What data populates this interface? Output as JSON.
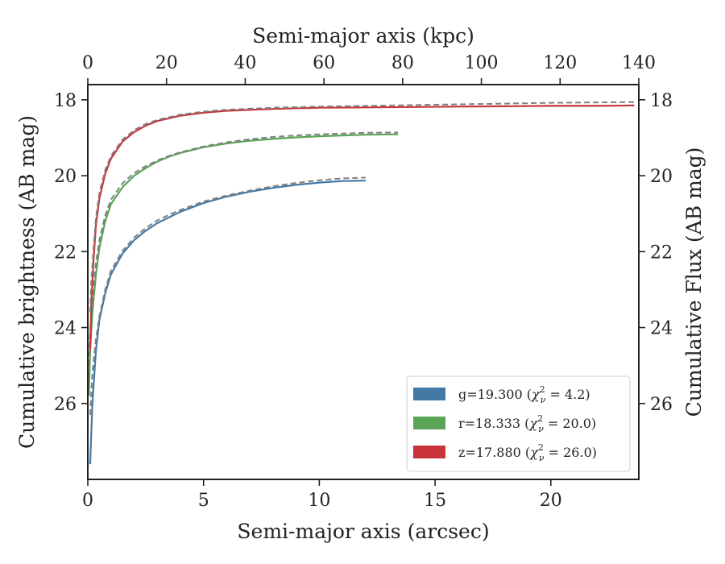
{
  "chart_data": {
    "type": "line",
    "xlabel": "Semi-major axis (arcsec)",
    "xlabel_top": "Semi-major axis (kpc)",
    "ylabel": "Cumulative brightness (AB mag)",
    "ylabel_right": "Cumulative Flux (AB mag)",
    "xlim": [
      0,
      23.8
    ],
    "xlim_top": [
      0,
      140
    ],
    "ylim": [
      28.0,
      17.6
    ],
    "y_inverted": true,
    "grid": false,
    "legend_position": "lower-right",
    "x_ticks": [
      0,
      5,
      10,
      15,
      20
    ],
    "x_ticks_top": [
      0,
      20,
      40,
      60,
      80,
      100,
      120,
      140
    ],
    "y_ticks": [
      18,
      20,
      22,
      24,
      26
    ],
    "series": [
      {
        "band": "g",
        "legend_mag": "g=19.300",
        "legend_chi": "4.2",
        "color": "#4479a6",
        "x": [
          0.1,
          0.2,
          0.35,
          0.5,
          0.75,
          1.0,
          1.5,
          2.0,
          2.5,
          3.0,
          3.5,
          4.0,
          5.0,
          6.0,
          7.0,
          8.0,
          9.0,
          10.0,
          11.0,
          12.0
        ],
        "y": [
          27.6,
          26.0,
          24.6,
          23.8,
          23.1,
          22.6,
          22.05,
          21.7,
          21.45,
          21.25,
          21.1,
          20.95,
          20.72,
          20.55,
          20.42,
          20.32,
          20.24,
          20.18,
          20.14,
          20.13
        ],
        "model_x": [
          0.1,
          0.2,
          0.35,
          0.5,
          0.75,
          1.0,
          1.5,
          2.0,
          2.5,
          3.0,
          3.5,
          4.0,
          5.0,
          6.0,
          7.0,
          8.0,
          9.0,
          10.0,
          11.0,
          12.0
        ],
        "model_y": [
          26.3,
          25.2,
          24.3,
          23.7,
          23.0,
          22.5,
          21.98,
          21.63,
          21.38,
          21.18,
          21.03,
          20.9,
          20.68,
          20.52,
          20.39,
          20.28,
          20.19,
          20.12,
          20.07,
          20.05
        ]
      },
      {
        "band": "r",
        "legend_mag": "r=18.333",
        "legend_chi": "20.0",
        "color": "#5aa455",
        "x": [
          0.05,
          0.1,
          0.2,
          0.35,
          0.5,
          0.75,
          1.0,
          1.5,
          2.0,
          2.5,
          3.0,
          3.5,
          4.0,
          5.0,
          6.0,
          7.0,
          8.0,
          9.0,
          10.0,
          11.0,
          12.0,
          13.4
        ],
        "y": [
          25.8,
          24.6,
          23.6,
          22.6,
          21.9,
          21.2,
          20.75,
          20.3,
          20.0,
          19.8,
          19.63,
          19.5,
          19.4,
          19.25,
          19.15,
          19.08,
          19.03,
          18.99,
          18.96,
          18.94,
          18.92,
          18.91
        ],
        "model_x": [
          0.05,
          0.1,
          0.2,
          0.35,
          0.5,
          0.75,
          1.0,
          1.5,
          2.0,
          2.5,
          3.0,
          3.5,
          4.0,
          5.0,
          6.0,
          7.0,
          8.0,
          9.0,
          10.0,
          11.0,
          12.0,
          13.4
        ],
        "model_y": [
          25.0,
          24.1,
          23.2,
          22.3,
          21.7,
          21.05,
          20.63,
          20.2,
          19.93,
          19.75,
          19.6,
          19.48,
          19.38,
          19.23,
          19.12,
          19.04,
          18.98,
          18.94,
          18.91,
          18.89,
          18.87,
          18.86
        ]
      },
      {
        "band": "z",
        "legend_mag": "z=17.880",
        "legend_chi": "26.0",
        "color": "#c9343a",
        "x": [
          0.1,
          0.15,
          0.25,
          0.35,
          0.5,
          0.75,
          1.0,
          1.5,
          2.0,
          2.5,
          3.0,
          4.0,
          5.0,
          6.0,
          8.0,
          10.0,
          12.0,
          14.0,
          16.0,
          18.0,
          20.0,
          22.0,
          23.6
        ],
        "y": [
          24.6,
          23.4,
          22.2,
          21.3,
          20.6,
          19.95,
          19.55,
          19.1,
          18.85,
          18.68,
          18.56,
          18.42,
          18.34,
          18.29,
          18.24,
          18.21,
          18.2,
          18.19,
          18.18,
          18.17,
          18.16,
          18.16,
          18.15
        ],
        "model_x": [
          0.1,
          0.15,
          0.25,
          0.35,
          0.5,
          0.75,
          1.0,
          1.5,
          2.0,
          2.5,
          3.0,
          4.0,
          5.0,
          6.0,
          8.0,
          10.0,
          12.0,
          14.0,
          16.0,
          18.0,
          20.0,
          22.0,
          23.6
        ],
        "model_y": [
          23.6,
          22.8,
          21.9,
          21.1,
          20.45,
          19.85,
          19.48,
          19.05,
          18.8,
          18.64,
          18.53,
          18.39,
          18.31,
          18.26,
          18.21,
          18.18,
          18.16,
          18.14,
          18.12,
          18.1,
          18.08,
          18.07,
          18.06
        ]
      }
    ]
  }
}
